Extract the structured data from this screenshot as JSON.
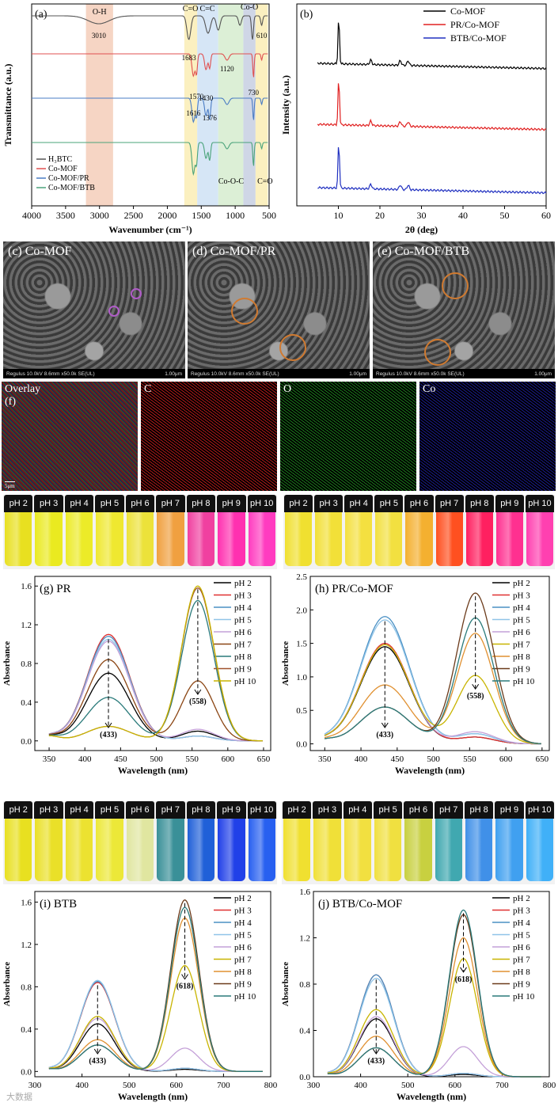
{
  "panels": {
    "a": "(a)",
    "b": "(b)",
    "c": "(c)",
    "d": "(d)",
    "e": "(e)",
    "f": "(f)",
    "g": "(g)",
    "h": "(h)",
    "i": "(i)",
    "j": "(j)"
  },
  "chart_data": [
    {
      "id": "a",
      "type": "line",
      "xlabel": "Wavenumber (cm⁻¹)",
      "ylabel": "Transmittance (a.u.)",
      "xlim": [
        4000,
        500
      ],
      "xticks": [
        4000,
        3500,
        3000,
        2500,
        2000,
        1500,
        1000,
        500
      ],
      "legend": [
        "H₃BTC",
        "Co-MOF",
        "Co-MOF/PR",
        "Co-MOF/BTB"
      ],
      "colors": [
        "#555555",
        "#e05050",
        "#4a7cc4",
        "#4aa37a"
      ],
      "bands": [
        {
          "label": "O-H",
          "from": 3200,
          "to": 2800,
          "color": "#f6d5c4"
        },
        {
          "label": "C=O",
          "from": 1750,
          "to": 1560,
          "color": "#fbf0c0"
        },
        {
          "label": "C=C",
          "from": 1560,
          "to": 1250,
          "color": "#d6e6f6"
        },
        {
          "label": "Co-O-C",
          "from": 1250,
          "to": 880,
          "color": "#dcefd6"
        },
        {
          "label": "Co-O",
          "from": 880,
          "to": 700,
          "color": "#cfd6e6"
        },
        {
          "label": "C=O",
          "from": 700,
          "to": 520,
          "color": "#fbf0c0"
        }
      ],
      "annotations": [
        "3010",
        "1683",
        "1120",
        "1570",
        "1430",
        "730",
        "1616",
        "1376",
        "610"
      ]
    },
    {
      "id": "b",
      "type": "line",
      "xlabel": "2θ (deg)",
      "ylabel": "Intensity (a.u.)",
      "xlim": [
        0,
        60
      ],
      "xticks": [
        10,
        20,
        30,
        40,
        50,
        60
      ],
      "series": [
        {
          "name": "Co-MOF",
          "color": "#000000",
          "peaks": [
            10.1,
            17.8,
            24.9,
            26.8
          ]
        },
        {
          "name": "PR/Co-MOF",
          "color": "#e02020",
          "peaks": [
            10.1,
            17.8,
            24.9,
            26.8
          ]
        },
        {
          "name": "BTB/Co-MOF",
          "color": "#2030c0",
          "peaks": [
            10.1,
            17.8,
            24.9,
            26.8
          ]
        }
      ]
    },
    {
      "id": "g",
      "type": "line",
      "title": "PR",
      "xlabel": "Wavelength (nm)",
      "ylabel": "Absorbance",
      "xlim": [
        330,
        660
      ],
      "ylim": [
        -0.1,
        1.7
      ],
      "xticks": [
        350,
        400,
        450,
        500,
        550,
        600,
        650
      ],
      "yticks": [
        0.0,
        0.4,
        0.8,
        1.2,
        1.6
      ],
      "peak_labels": [
        "(433)",
        "(558)"
      ],
      "series": [
        {
          "name": "pH 2",
          "color": "#000000",
          "b1": 0.7,
          "b2": 0.1
        },
        {
          "name": "pH 3",
          "color": "#e03030",
          "b1": 1.1,
          "b2": 0.05
        },
        {
          "name": "pH 4",
          "color": "#4a90c4",
          "b1": 1.08,
          "b2": 0.05
        },
        {
          "name": "pH 5",
          "color": "#90c4e8",
          "b1": 1.05,
          "b2": 0.05
        },
        {
          "name": "pH 6",
          "color": "#c4a0d8",
          "b1": 1.03,
          "b2": 0.12
        },
        {
          "name": "pH 7",
          "color": "#8b4513",
          "b1": 0.84,
          "b2": 0.62
        },
        {
          "name": "pH 8",
          "color": "#2a7a7a",
          "b1": 0.45,
          "b2": 1.45
        },
        {
          "name": "pH 9",
          "color": "#a0522d",
          "b1": 0.15,
          "b2": 1.58
        },
        {
          "name": "pH 10",
          "color": "#c8b400",
          "b1": 0.15,
          "b2": 1.6
        }
      ]
    },
    {
      "id": "h",
      "type": "line",
      "title": "PR/Co-MOF",
      "xlabel": "Wavelength (nm)",
      "ylabel": "Absorbance",
      "xlim": [
        330,
        660
      ],
      "ylim": [
        -0.1,
        2.5
      ],
      "xticks": [
        350,
        400,
        450,
        500,
        550,
        600,
        650
      ],
      "yticks": [
        0.0,
        0.5,
        1.0,
        1.5,
        2.0,
        2.5
      ],
      "peak_labels": [
        "(433)",
        "(558)"
      ],
      "series": [
        {
          "name": "pH 2",
          "color": "#000000",
          "b1": 1.45,
          "b2": 0.1
        },
        {
          "name": "pH 3",
          "color": "#e03030",
          "b1": 1.5,
          "b2": 0.1
        },
        {
          "name": "pH 4",
          "color": "#4a90c4",
          "b1": 1.9,
          "b2": 0.15
        },
        {
          "name": "pH 5",
          "color": "#90c4e8",
          "b1": 1.85,
          "b2": 0.15
        },
        {
          "name": "pH 6",
          "color": "#c4a0d8",
          "b1": 1.48,
          "b2": 0.18
        },
        {
          "name": "pH 7",
          "color": "#c8b400",
          "b1": 1.48,
          "b2": 1.02
        },
        {
          "name": "pH 8",
          "color": "#e09030",
          "b1": 0.88,
          "b2": 1.65
        },
        {
          "name": "pH 9",
          "color": "#6b3a1a",
          "b1": 0.55,
          "b2": 2.25
        },
        {
          "name": "pH 10",
          "color": "#2a7a7a",
          "b1": 0.55,
          "b2": 1.88
        }
      ]
    },
    {
      "id": "i",
      "type": "line",
      "title": "BTB",
      "xlabel": "Wavelength (nm)",
      "ylabel": "Absorbance",
      "xlim": [
        300,
        800
      ],
      "ylim": [
        -0.05,
        1.7
      ],
      "xticks": [
        300,
        400,
        500,
        600,
        700,
        800
      ],
      "yticks": [
        0.0,
        0.4,
        0.8,
        1.2,
        1.6
      ],
      "peak_labels": [
        "(433)",
        "(618)"
      ],
      "series": [
        {
          "name": "pH 2",
          "color": "#000000",
          "b1": 0.45,
          "b2": 0.02
        },
        {
          "name": "pH 3",
          "color": "#e03030",
          "b1": 0.84,
          "b2": 0.03
        },
        {
          "name": "pH 4",
          "color": "#4a90c4",
          "b1": 0.85,
          "b2": 0.03
        },
        {
          "name": "pH 5",
          "color": "#90c4e8",
          "b1": 0.86,
          "b2": 0.03
        },
        {
          "name": "pH 6",
          "color": "#c4a0d8",
          "b1": 0.5,
          "b2": 0.22
        },
        {
          "name": "pH 7",
          "color": "#c8b400",
          "b1": 0.52,
          "b2": 1.0
        },
        {
          "name": "pH 8",
          "color": "#e09030",
          "b1": 0.3,
          "b2": 1.45
        },
        {
          "name": "pH 9",
          "color": "#6b3a1a",
          "b1": 0.25,
          "b2": 1.62
        },
        {
          "name": "pH 10",
          "color": "#2a7a7a",
          "b1": 0.25,
          "b2": 1.55
        }
      ]
    },
    {
      "id": "j",
      "type": "line",
      "title": "BTB/Co-MOF",
      "xlabel": "Wavelength (nm)",
      "ylabel": "Absorbance",
      "xlim": [
        300,
        800
      ],
      "ylim": [
        0.0,
        1.6
      ],
      "xticks": [
        300,
        400,
        500,
        600,
        700,
        800
      ],
      "yticks": [
        0.0,
        0.4,
        0.8,
        1.2,
        1.6
      ],
      "peak_labels": [
        "(433)",
        "(618)"
      ],
      "series": [
        {
          "name": "pH 2",
          "color": "#000000",
          "b1": 0.5,
          "b2": 0.02
        },
        {
          "name": "pH 3",
          "color": "#e03030",
          "b1": 0.88,
          "b2": 0.03
        },
        {
          "name": "pH 4",
          "color": "#4a90c4",
          "b1": 0.88,
          "b2": 0.03
        },
        {
          "name": "pH 5",
          "color": "#90c4e8",
          "b1": 0.85,
          "b2": 0.03
        },
        {
          "name": "pH 6",
          "color": "#c4a0d8",
          "b1": 0.52,
          "b2": 0.26
        },
        {
          "name": "pH 7",
          "color": "#c8b400",
          "b1": 0.58,
          "b2": 1.02
        },
        {
          "name": "pH 8",
          "color": "#e09030",
          "b1": 0.35,
          "b2": 1.2
        },
        {
          "name": "pH 9",
          "color": "#6b3a1a",
          "b1": 0.25,
          "b2": 1.4
        },
        {
          "name": "pH 10",
          "color": "#2a7a7a",
          "b1": 0.25,
          "b2": 1.44
        }
      ]
    }
  ],
  "sem": [
    {
      "label": "Co-MOF",
      "footer_left": "Regulus 10.0kV 8.6mm x50.0k SE(UL)",
      "footer_right": "1.00μm",
      "marker_color": "#b05cc8"
    },
    {
      "label": "Co-MOF/PR",
      "footer_left": "Regulus 10.0kV 8.6mm x50.0k SE(UL)",
      "footer_right": "1.00μm",
      "marker_color": "#d07a30"
    },
    {
      "label": "Co-MOF/BTB",
      "footer_left": "Regulus 10.0kV 8.6mm x50.0k SE(UL)",
      "footer_right": "1.00μm",
      "marker_color": "#d07a30"
    }
  ],
  "maps": [
    {
      "label": "Overlay",
      "scale": "5μm",
      "color": "#7a3020"
    },
    {
      "label": "C",
      "color": "#b01818"
    },
    {
      "label": "O",
      "color": "#1a7a1a"
    },
    {
      "label": "Co",
      "color": "#1a1a8a"
    }
  ],
  "vials": {
    "pr_left": {
      "labels": [
        "pH 2",
        "pH 3",
        "pH 4",
        "pH 5",
        "pH 6",
        "pH 7",
        "pH 8",
        "pH 9",
        "pH 10"
      ],
      "colors": [
        "#e8e020",
        "#eaea20",
        "#eceb28",
        "#efe830",
        "#ece23a",
        "#f0a040",
        "#f040a0",
        "#ff30b0",
        "#ff3cc0"
      ]
    },
    "pr_right": {
      "labels": [
        "pH 2",
        "pH 3",
        "pH 4",
        "pH 5",
        "pH 6",
        "pH 7",
        "pH 8",
        "pH 9",
        "pH 10"
      ],
      "colors": [
        "#f0e030",
        "#f2e038",
        "#f4e040",
        "#f2e040",
        "#f4b030",
        "#ff5020",
        "#ff2060",
        "#ff3090",
        "#ff40b0"
      ]
    },
    "btb_left": {
      "labels": [
        "pH 2",
        "pH 3",
        "pH 4",
        "pH 5",
        "pH 6",
        "pH 7",
        "pH 8",
        "pH 9",
        "pH 10"
      ],
      "colors": [
        "#e8e020",
        "#eae028",
        "#ece230",
        "#ece838",
        "#e0e6a0",
        "#3a9098",
        "#2060d8",
        "#2040e8",
        "#2860f0"
      ]
    },
    "btb_right": {
      "labels": [
        "pH 2",
        "pH 3",
        "pH 4",
        "pH 5",
        "pH 6",
        "pH 7",
        "pH 8",
        "pH 9",
        "pH 10"
      ],
      "colors": [
        "#f0e030",
        "#f0e038",
        "#f2e040",
        "#f0e040",
        "#c8d040",
        "#40a8b0",
        "#4090e8",
        "#40a0f0",
        "#40b0f8"
      ]
    }
  },
  "watermark": "大数据"
}
